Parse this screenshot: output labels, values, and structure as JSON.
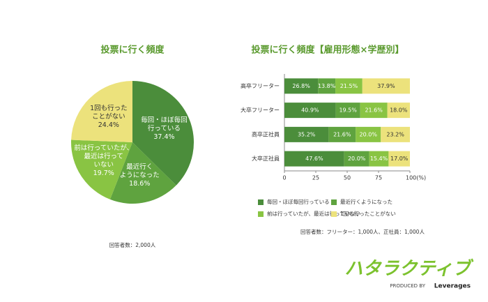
{
  "chart_data": [
    {
      "type": "pie",
      "title": "投票に行く頻度",
      "categories": [
        "毎回・ほぼ毎回\n行っている",
        "最近行く\nようになった",
        "前は行っていたが、\n最近は行って\nいない",
        "1回も行った\nことがない"
      ],
      "values": [
        37.4,
        18.6,
        19.7,
        24.4
      ],
      "value_labels": [
        "37.4%",
        "18.6%",
        "19.7%",
        "24.4%"
      ],
      "colors": [
        "#4b8d3b",
        "#5fa33f",
        "#89c443",
        "#ece27c"
      ],
      "note": "回答者数：2,000人"
    },
    {
      "type": "bar",
      "orientation": "horizontal",
      "stacked": true,
      "title": "投票に行く頻度【雇用形態×学歴別】",
      "categories": [
        "高卒フリーター",
        "大卒フリーター",
        "高卒正社員",
        "大卒正社員"
      ],
      "series": [
        {
          "name": "毎回・ほぼ毎回行っている",
          "color": "#4b8d3b",
          "values": [
            26.8,
            40.9,
            35.2,
            47.6
          ],
          "value_labels": [
            "26.8%",
            "40.9%",
            "35.2%",
            "47.6%"
          ]
        },
        {
          "name": "最近行くようになった",
          "color": "#5fa33f",
          "values": [
            13.8,
            19.5,
            21.6,
            20.0
          ],
          "value_labels": [
            "13.8%",
            "19.5%",
            "21.6%",
            "20.0%"
          ]
        },
        {
          "name": "前は行っていたが、最近は行っていない",
          "color": "#89c443",
          "values": [
            21.5,
            21.6,
            20.0,
            15.4
          ],
          "value_labels": [
            "21.5%",
            "21.6%",
            "20.0%",
            "15.4%"
          ]
        },
        {
          "name": "1回も行ったことがない",
          "color": "#ece27c",
          "values": [
            37.9,
            18.0,
            23.2,
            17.0
          ],
          "value_labels": [
            "37.9%",
            "18.0%",
            "23.2%",
            "17.0%"
          ]
        }
      ],
      "xlim": [
        0,
        100
      ],
      "xticks": [
        0,
        25,
        50,
        75,
        {
          "value": 100,
          "label": "100(%)"
        }
      ],
      "legend": "bottom",
      "note": "回答者数：フリーター：1,000人、正社員：1,000人"
    }
  ],
  "branding": {
    "logo": "ハタラクティブ",
    "produced_by": "PRODUCED BY",
    "company": "Leverages"
  }
}
